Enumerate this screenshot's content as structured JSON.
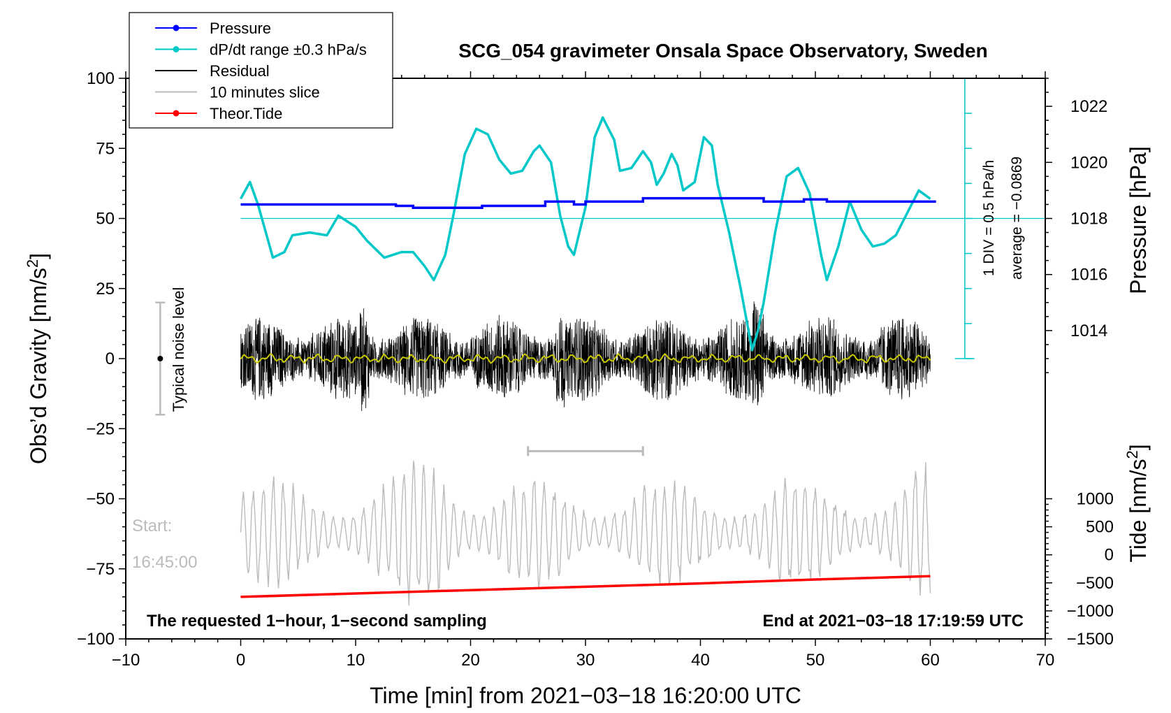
{
  "chart_data": {
    "type": "line",
    "title": "SCG_054 gravimeter Onsala Space Observatory, Sweden",
    "xlabel": "Time [min] from 2021−03−18 16:20:00 UTC",
    "ylabel_left": "Obs’d Gravity [nm/s",
    "ylabel_left_sup": "2",
    "ylabel_left_end": "]",
    "ylabel_right_top": "Pressure [hPa]",
    "ylabel_right_bottom": "Tide [nm/s",
    "ylabel_right_bottom_sup": "2",
    "ylabel_right_bottom_end": "]",
    "xlim": [
      -10,
      70
    ],
    "ylim_left": [
      -100,
      100
    ],
    "x_ticks": [
      -10,
      0,
      10,
      20,
      30,
      40,
      50,
      60,
      70
    ],
    "x_tick_labels": [
      "−10",
      "0",
      "10",
      "20",
      "30",
      "40",
      "50",
      "60",
      "70"
    ],
    "y_ticks": [
      100,
      75,
      50,
      25,
      0,
      -25,
      -50,
      -75,
      -100
    ],
    "y_tick_labels": [
      "100",
      "75",
      "50",
      "25",
      "0",
      "−25",
      "−50",
      "−75",
      "−100"
    ],
    "pressure_axis": {
      "ticks": [
        1022,
        1020,
        1018,
        1016,
        1014
      ],
      "tick_labels": [
        "1022",
        "1020",
        "1018",
        "1016",
        "1014"
      ],
      "ref": {
        "value": 1018,
        "gravity": 50
      },
      "gravity_per_hpa": 10
    },
    "tide_axis": {
      "ticks": [
        1000,
        500,
        0,
        -500,
        -1000,
        -1500
      ],
      "tick_labels": [
        "1000",
        "500",
        "0",
        "−500",
        "−1000",
        "−1500"
      ],
      "ref": {
        "value": -1500,
        "gravity": -100
      },
      "gravity_per_unit": 0.02
    },
    "legend": [
      {
        "label": "Pressure",
        "color": "#0000ff",
        "marker": true
      },
      {
        "label": "dP/dt range ±0.3 hPa/s",
        "color": "#00c8c8",
        "marker": true
      },
      {
        "label": "Residual",
        "color": "#000000",
        "marker": false
      },
      {
        "label": "10 minutes slice",
        "color": "#bbbbbb",
        "marker": false
      },
      {
        "label": "Theor.Tide",
        "color": "#ff0000",
        "marker": true
      }
    ],
    "series": [
      {
        "name": "Pressure",
        "unit": "hPa",
        "color": "#0000ff",
        "points": [
          [
            0,
            1018.5
          ],
          [
            13.5,
            1018.5
          ],
          [
            13.5,
            1018.45
          ],
          [
            15,
            1018.45
          ],
          [
            15,
            1018.38
          ],
          [
            21,
            1018.38
          ],
          [
            21,
            1018.45
          ],
          [
            26.5,
            1018.45
          ],
          [
            26.5,
            1018.6
          ],
          [
            29,
            1018.6
          ],
          [
            29,
            1018.5
          ],
          [
            30,
            1018.5
          ],
          [
            30,
            1018.6
          ],
          [
            35,
            1018.6
          ],
          [
            35,
            1018.72
          ],
          [
            45.5,
            1018.72
          ],
          [
            45.5,
            1018.6
          ],
          [
            49,
            1018.6
          ],
          [
            49,
            1018.68
          ],
          [
            51,
            1018.68
          ],
          [
            51,
            1018.6
          ],
          [
            60.5,
            1018.6
          ]
        ]
      },
      {
        "name": "dP/dt range",
        "unit": "gravity-axis",
        "color": "#00c8c8",
        "points": [
          [
            0,
            57
          ],
          [
            0.8,
            63
          ],
          [
            1.5,
            55
          ],
          [
            2.8,
            36
          ],
          [
            3.8,
            38
          ],
          [
            4.5,
            44
          ],
          [
            6,
            45
          ],
          [
            7.5,
            44
          ],
          [
            8.5,
            51
          ],
          [
            10,
            47
          ],
          [
            11,
            42
          ],
          [
            12.5,
            36
          ],
          [
            14,
            38
          ],
          [
            15,
            38
          ],
          [
            16,
            33
          ],
          [
            16.8,
            28
          ],
          [
            17.8,
            37
          ],
          [
            18.5,
            51
          ],
          [
            19.5,
            73
          ],
          [
            20.5,
            82
          ],
          [
            21.5,
            80
          ],
          [
            22.5,
            71
          ],
          [
            23.5,
            66
          ],
          [
            24.5,
            67
          ],
          [
            25.5,
            74
          ],
          [
            26,
            76
          ],
          [
            27,
            70
          ],
          [
            27.8,
            51
          ],
          [
            28.5,
            40
          ],
          [
            29,
            37
          ],
          [
            30,
            54
          ],
          [
            30.8,
            79
          ],
          [
            31.5,
            86
          ],
          [
            32.5,
            78
          ],
          [
            33,
            67
          ],
          [
            34,
            68
          ],
          [
            35,
            74
          ],
          [
            35.7,
            70
          ],
          [
            36.2,
            62
          ],
          [
            36.8,
            66
          ],
          [
            37.5,
            73
          ],
          [
            38,
            69
          ],
          [
            38.5,
            60
          ],
          [
            39.5,
            63
          ],
          [
            40.3,
            79
          ],
          [
            41,
            76
          ],
          [
            41.5,
            62
          ],
          [
            42.5,
            45
          ],
          [
            43.5,
            25
          ],
          [
            44.5,
            3
          ],
          [
            45,
            10
          ],
          [
            45.5,
            20
          ],
          [
            46.5,
            45
          ],
          [
            47.5,
            65
          ],
          [
            48.5,
            68
          ],
          [
            49.5,
            59
          ],
          [
            50.5,
            37
          ],
          [
            51,
            28
          ],
          [
            52,
            40
          ],
          [
            53,
            56
          ],
          [
            54,
            46
          ],
          [
            55,
            40
          ],
          [
            56,
            41
          ],
          [
            57,
            44
          ],
          [
            58,
            52
          ],
          [
            59,
            60
          ],
          [
            60,
            57
          ]
        ]
      },
      {
        "name": "Residual",
        "color": "#000000",
        "style": "dense noise, amplitude ~ ±20 nm/s²",
        "x_range": [
          0,
          60
        ]
      },
      {
        "name": "Residual (smoothed)",
        "color": "#c8c800",
        "style": "near zero",
        "x_range": [
          0,
          60
        ]
      },
      {
        "name": "10 minutes slice",
        "color": "#bbbbbb",
        "style": "oscillation centred at -62",
        "x_range": [
          0,
          60
        ]
      },
      {
        "name": "Theor.Tide",
        "unit": "nm/s2",
        "color": "#ff0000",
        "points": [
          [
            0,
            -750
          ],
          [
            10,
            -690
          ],
          [
            20,
            -630
          ],
          [
            30,
            -570
          ],
          [
            40,
            -510
          ],
          [
            50,
            -440
          ],
          [
            60,
            -380
          ]
        ]
      }
    ],
    "annotations": {
      "noise_label": "Typical noise level",
      "noise_range": [
        -20,
        20
      ],
      "start_line1": "Start:",
      "start_line2": "16:45:00",
      "slice_bar": [
        25,
        35
      ],
      "div_label": "1 DIV = 0.5 hPa/h",
      "average_label": "average = −0.0869",
      "bottom_left": "The requested 1−hour, 1−second sampling",
      "bottom_right": "End at 2021−03−18 17:19:59 UTC"
    }
  }
}
